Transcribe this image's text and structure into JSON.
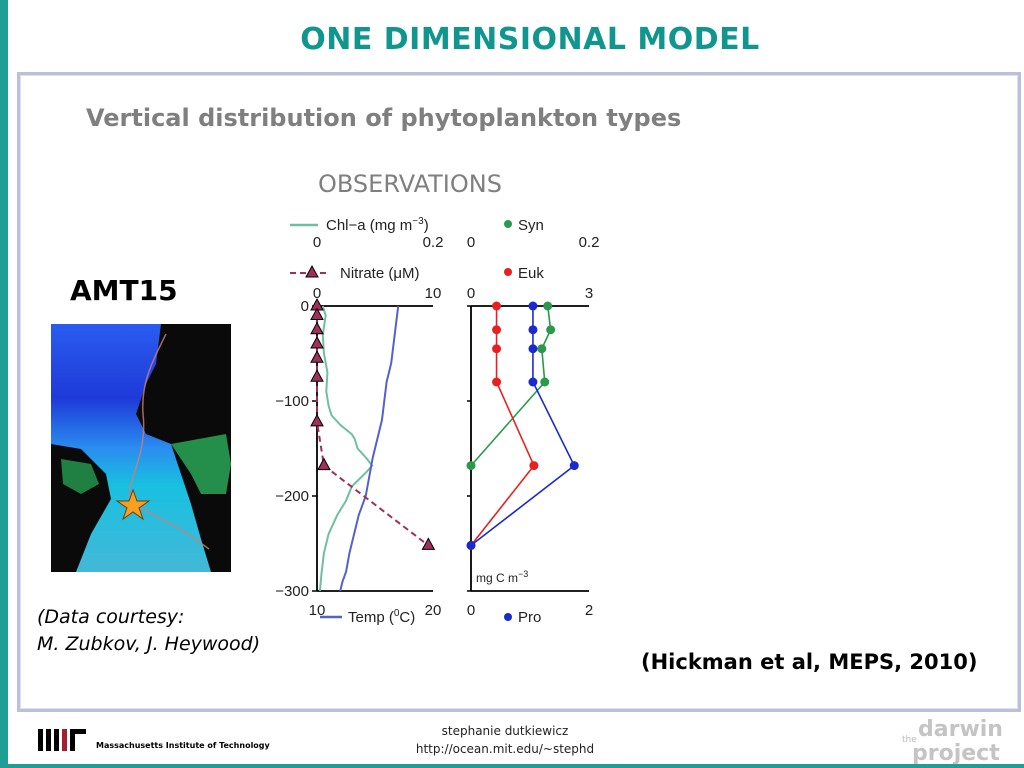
{
  "title": "ONE DIMENSIONAL MODEL",
  "subtitle": "Vertical distribution of phytoplankton types",
  "panel_heading": "OBSERVATIONS",
  "map_label": "AMT15",
  "courtesy": {
    "line1": "(Data courtesy:",
    "line2": "M. Zubkov, J. Heywood)"
  },
  "citation": "(Hickman et al, MEPS, 2010)",
  "footer": {
    "author": "stephanie dutkiewicz",
    "url": "http://ocean.mit.edu/~stephd",
    "mit_name": "Massachusetts Institute of Technology",
    "logo_small": "the",
    "logo_word1": "darwin",
    "logo_word2": "project"
  },
  "colors": {
    "title": "#11968f",
    "chl": "#6fbf9f",
    "nitrate": "#a0305a",
    "temp": "#5560c8",
    "syn": "#2a9a4a",
    "euk": "#e82020",
    "pro": "#1a2ad0"
  },
  "chart_data": [
    {
      "type": "line",
      "panel": "left",
      "y_axis": {
        "label": "",
        "ticks": [
          0,
          -100,
          -200,
          -300
        ],
        "tick_labels": [
          "0",
          "−100",
          "−200",
          "−300"
        ],
        "ylim": [
          -300,
          0
        ]
      },
      "x_axes": [
        {
          "series": "Chl−a (mg m−3)",
          "range": [
            0,
            0.2
          ],
          "tick_labels": [
            "0",
            "0.2"
          ]
        },
        {
          "series": "Nitrate (μM)",
          "range": [
            0,
            10
          ],
          "tick_labels": [
            "0",
            "10"
          ]
        },
        {
          "series": "Temp (°C)",
          "range": [
            10,
            20
          ],
          "tick_labels": [
            "10",
            "20"
          ]
        }
      ],
      "legend": [
        {
          "name": "Chl−a (mg m",
          "sup": "−3",
          "tail": ")"
        },
        {
          "name": "Nitrate (",
          "mu": "μ",
          "tail": "M)"
        },
        {
          "name": "Temp (",
          "sup": "0",
          "tail": "C)"
        }
      ],
      "series": [
        {
          "name": "Chl−a",
          "x": [
            0.01,
            0.015,
            0.01,
            0.012,
            0.018,
            0.016,
            0.02,
            0.025,
            0.04,
            0.06,
            0.065,
            0.07,
            0.085,
            0.095,
            0.085,
            0.06,
            0.05,
            0.035,
            0.02,
            0.012,
            0.008,
            0.005
          ],
          "y": [
            0,
            -10,
            -30,
            -50,
            -70,
            -90,
            -105,
            -115,
            -125,
            -135,
            -140,
            -150,
            -160,
            -168,
            -175,
            -190,
            -205,
            -220,
            -240,
            -260,
            -280,
            -300
          ]
        },
        {
          "name": "Nitrate",
          "x": [
            0,
            0,
            0,
            0,
            0,
            0,
            0,
            0.6,
            9.6
          ],
          "y": [
            0,
            -10,
            -25,
            -40,
            -55,
            -75,
            -122,
            -168,
            -252
          ]
        },
        {
          "name": "Temp",
          "x": [
            17,
            16.8,
            16.6,
            16.4,
            16,
            15.8,
            15.6,
            15.2,
            14.8,
            14.5,
            14.2,
            13.6,
            13.2,
            12.8,
            12.5,
            12.2,
            12
          ],
          "y": [
            0,
            -20,
            -40,
            -60,
            -80,
            -100,
            -120,
            -140,
            -160,
            -180,
            -200,
            -220,
            -240,
            -260,
            -280,
            -290,
            -300
          ]
        }
      ]
    },
    {
      "type": "line",
      "panel": "right",
      "y_axis": {
        "ylim": [
          -300,
          0
        ]
      },
      "x_axes": [
        {
          "series": "Syn",
          "range": [
            0,
            0.2
          ],
          "tick_labels": [
            "0",
            "0.2"
          ]
        },
        {
          "series": "Euk",
          "range": [
            0,
            3
          ],
          "tick_labels": [
            "0",
            "3"
          ]
        },
        {
          "series": "Pro",
          "range": [
            0,
            2
          ],
          "tick_labels": [
            "0",
            "2"
          ]
        }
      ],
      "units_label": "mg C m",
      "units_sup": "−3",
      "series": [
        {
          "name": "Syn",
          "x": [
            0.13,
            0.135,
            0.12,
            0.125,
            0
          ],
          "y": [
            0,
            -25,
            -45,
            -80,
            -168
          ]
        },
        {
          "name": "Euk",
          "x": [
            0.65,
            0.65,
            0.65,
            0.65,
            1.6,
            0
          ],
          "y": [
            0,
            -25,
            -45,
            -80,
            -168,
            -252
          ]
        },
        {
          "name": "Pro",
          "x": [
            1.05,
            1.05,
            1.05,
            1.05,
            1.75,
            0
          ],
          "y": [
            0,
            -25,
            -45,
            -80,
            -168,
            -252
          ]
        }
      ]
    }
  ]
}
